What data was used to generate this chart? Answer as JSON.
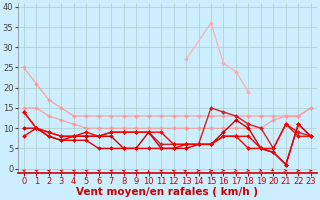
{
  "xlabel": "Vent moyen/en rafales ( km/h )",
  "background_color": "#cceeff",
  "grid_color": "#aacccc",
  "x": [
    0,
    1,
    2,
    3,
    4,
    5,
    6,
    7,
    8,
    9,
    10,
    11,
    12,
    13,
    14,
    15,
    16,
    17,
    18,
    19,
    20,
    21,
    22,
    23
  ],
  "ylim": [
    -1,
    41
  ],
  "xlim": [
    -0.5,
    23.5
  ],
  "yticks": [
    0,
    5,
    10,
    15,
    20,
    25,
    30,
    35,
    40
  ],
  "series": [
    {
      "y": [
        25,
        21,
        17,
        15,
        13,
        13,
        13,
        13,
        13,
        13,
        13,
        13,
        13,
        13,
        13,
        13,
        13,
        13,
        13,
        13,
        13,
        13,
        13,
        15
      ],
      "color": "#ff9999",
      "lw": 0.8,
      "marker": "D",
      "ms": 2.0
    },
    {
      "y": [
        15,
        15,
        13,
        12,
        11,
        10,
        10,
        10,
        10,
        10,
        10,
        10,
        10,
        10,
        10,
        10,
        10,
        10,
        10,
        10,
        12,
        13,
        13,
        15
      ],
      "color": "#ff9999",
      "lw": 0.8,
      "marker": "D",
      "ms": 2.0
    },
    {
      "y": [
        null,
        null,
        null,
        null,
        null,
        null,
        null,
        null,
        null,
        null,
        null,
        null,
        null,
        27,
        null,
        36,
        26,
        24,
        19,
        null,
        null,
        null,
        null,
        null
      ],
      "color": "#ffaaaa",
      "lw": 0.8,
      "marker": "D",
      "ms": 2.0
    },
    {
      "y": [
        14,
        10,
        9,
        8,
        8,
        8,
        8,
        9,
        9,
        9,
        9,
        6,
        6,
        6,
        6,
        15,
        14,
        13,
        11,
        10,
        5,
        11,
        9,
        8
      ],
      "color": "#cc2222",
      "lw": 1.0,
      "marker": "D",
      "ms": 2.0
    },
    {
      "y": [
        10,
        10,
        8,
        7,
        8,
        8,
        8,
        8,
        5,
        5,
        9,
        5,
        5,
        5,
        6,
        6,
        9,
        12,
        10,
        5,
        4,
        1,
        11,
        8
      ],
      "color": "#cc0000",
      "lw": 1.0,
      "marker": "D",
      "ms": 2.0
    },
    {
      "y": [
        8,
        10,
        8,
        7,
        7,
        7,
        5,
        5,
        5,
        5,
        5,
        5,
        5,
        6,
        6,
        6,
        8,
        8,
        8,
        5,
        4,
        1,
        11,
        8
      ],
      "color": "#ee0000",
      "lw": 1.0,
      "marker": "D",
      "ms": 2.0
    },
    {
      "y": [
        14,
        10,
        9,
        8,
        8,
        9,
        8,
        9,
        9,
        9,
        9,
        9,
        6,
        6,
        6,
        6,
        8,
        8,
        5,
        5,
        5,
        11,
        8,
        8
      ],
      "color": "#ff0000",
      "lw": 1.0,
      "marker": "D",
      "ms": 2.0
    }
  ],
  "xlabel_color": "#cc0000",
  "xlabel_fontsize": 7.5,
  "tick_fontsize": 6,
  "ytick_fontsize": 6
}
